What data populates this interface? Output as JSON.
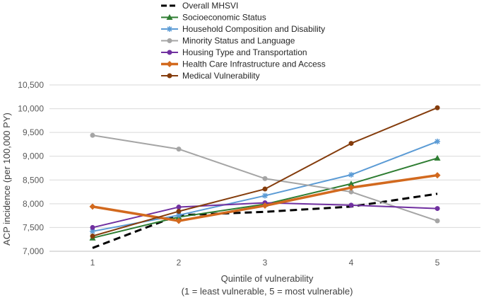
{
  "chart_data": {
    "type": "line",
    "title": "",
    "xlabel": "Quintile of vulnerability",
    "xlabel_sub": "(1 = least vulnerable, 5 = most vulnerable)",
    "ylabel": "ACP incidence (per 100,000 PY)",
    "categories": [
      "1",
      "2",
      "3",
      "4",
      "5"
    ],
    "ylim": [
      7000,
      10500
    ],
    "yticks": [
      7000,
      7500,
      8000,
      8500,
      9000,
      9500,
      10000,
      10500
    ],
    "ytick_labels": [
      "7,000",
      "7,500",
      "8,000",
      "8,500",
      "9,000",
      "9,500",
      "10,000",
      "10,500"
    ],
    "grid": true,
    "legend_position": "top-left",
    "series": [
      {
        "name": "Overall MHSVI",
        "color": "#000000",
        "marker": "none",
        "dash": true,
        "width": 3,
        "values": [
          7070,
          7760,
          7830,
          7940,
          8210
        ]
      },
      {
        "name": "Socioeconomic Status",
        "color": "#2e7d32",
        "marker": "triangle",
        "dash": false,
        "width": 2,
        "values": [
          7280,
          7720,
          7990,
          8420,
          8960
        ]
      },
      {
        "name": "Household Composition and Disability",
        "color": "#5b9bd5",
        "marker": "star",
        "dash": false,
        "width": 2,
        "values": [
          7420,
          7760,
          8170,
          8610,
          9310
        ]
      },
      {
        "name": "Minority Status and Language",
        "color": "#a5a5a5",
        "marker": "circle",
        "dash": false,
        "width": 2,
        "values": [
          9440,
          9150,
          8530,
          8250,
          7640
        ]
      },
      {
        "name": "Housing Type and Transportation",
        "color": "#7030a0",
        "marker": "circle",
        "dash": false,
        "width": 2,
        "values": [
          7500,
          7930,
          8020,
          7970,
          7900
        ]
      },
      {
        "name": "Health Care Infrastructure and Access",
        "color": "#d2691e",
        "marker": "diamond",
        "dash": false,
        "width": 3.5,
        "values": [
          7940,
          7640,
          7960,
          8340,
          8600
        ]
      },
      {
        "name": "Medical Vulnerability",
        "color": "#843c0c",
        "marker": "circle",
        "dash": false,
        "width": 2,
        "values": [
          7320,
          7840,
          8310,
          9270,
          10020
        ]
      }
    ]
  }
}
